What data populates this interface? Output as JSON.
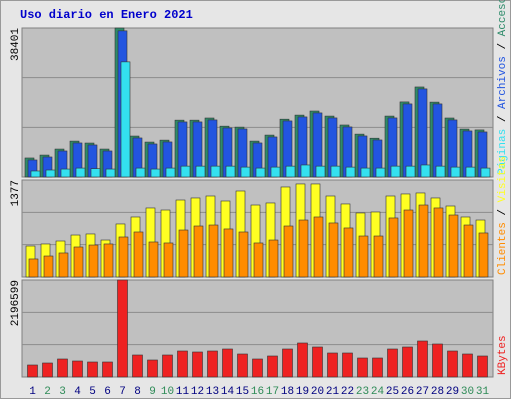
{
  "chart_data": [
    {
      "type": "bar",
      "title": "Uso diario en Enero 2021",
      "legend_separator": " / ",
      "ylim": [
        0,
        38401
      ],
      "yticks": [
        38401
      ],
      "series": [
        {
          "name": "Páginas",
          "color": "#33e0f0",
          "values": [
            1550,
            1800,
            2050,
            2300,
            2150,
            2050,
            29670,
            2300,
            2050,
            2300,
            2800,
            2800,
            2800,
            2800,
            2550,
            2300,
            2550,
            2800,
            3100,
            2800,
            2800,
            2550,
            2300,
            2300,
            2800,
            2800,
            3100,
            2800,
            2550,
            2550,
            2300
          ]
        },
        {
          "name": "Archivos",
          "color": "#2255e0",
          "values": [
            4386,
            5160,
            6708,
            8772,
            8256,
            6708,
            37668,
            10062,
            8514,
            9030,
            14190,
            14190,
            14706,
            12642,
            12384,
            8772,
            10320,
            14448,
            15480,
            16512,
            15222,
            12900,
            10578,
            9546,
            15222,
            18834,
            22704,
            18834,
            14706,
            11868,
            11610
          ]
        },
        {
          "name": "Accesos",
          "color": "#2e8b6a",
          "values": [
            4900,
            5650,
            7200,
            9250,
            8750,
            7200,
            38401,
            10550,
            9000,
            9500,
            14650,
            14650,
            15200,
            13100,
            12850,
            9250,
            10800,
            14900,
            15950,
            17000,
            15700,
            13400,
            11050,
            10000,
            15700,
            19350,
            23200,
            19300,
            15200,
            12350,
            12130
          ]
        }
      ]
    },
    {
      "type": "bar",
      "ylim": [
        0,
        1377
      ],
      "yticks": [
        1377
      ],
      "series": [
        {
          "name": "Clientes",
          "color": "#ff8c00",
          "values": [
            256,
            298,
            341,
            426,
            454,
            469,
            568,
            639,
            497,
            483,
            667,
            724,
            738,
            682,
            639,
            483,
            525,
            724,
            809,
            852,
            767,
            696,
            582,
            582,
            838,
            951,
            1022,
            980,
            880,
            738,
            625
          ]
        },
        {
          "name": "Visitas",
          "color": "#ffff22",
          "values": [
            440,
            469,
            511,
            596,
            611,
            525,
            753,
            852,
            980,
            951,
            1093,
            1122,
            1150,
            1079,
            1221,
            1022,
            1051,
            1278,
            1321,
            1321,
            1150,
            1037,
            909,
            923,
            1150,
            1179,
            1193,
            1122,
            1008,
            852,
            809
          ]
        }
      ]
    },
    {
      "type": "bar",
      "ylim": [
        0,
        2196599
      ],
      "yticks": [
        2196599
      ],
      "categories": [
        "1",
        "2",
        "3",
        "4",
        "5",
        "6",
        "7",
        "8",
        "9",
        "10",
        "11",
        "12",
        "13",
        "14",
        "15",
        "16",
        "17",
        "18",
        "19",
        "20",
        "21",
        "22",
        "23",
        "24",
        "25",
        "26",
        "27",
        "28",
        "29",
        "30",
        "31"
      ],
      "category_colors": [
        "#000080",
        "#2e8b57",
        "#2e8b57",
        "#000080",
        "#000080",
        "#000080",
        "#000080",
        "#000080",
        "#2e8b57",
        "#2e8b57",
        "#000080",
        "#000080",
        "#000080",
        "#000080",
        "#000080",
        "#2e8b57",
        "#2e8b57",
        "#000080",
        "#000080",
        "#000080",
        "#000080",
        "#000080",
        "#2e8b57",
        "#2e8b57",
        "#000080",
        "#000080",
        "#000080",
        "#000080",
        "#000080",
        "#2e8b57",
        "#2e8b57"
      ],
      "series": [
        {
          "name": "KBytes",
          "color": "#ee2222",
          "values": [
            271740,
            317030,
            407610,
            362320,
            339675,
            339675,
            2196599,
            498190,
            384965,
            498190,
            588770,
            566125,
            588770,
            634060,
            520835,
            407610,
            475545,
            634060,
            769930,
            679350,
            543480,
            543480,
            430255,
            430255,
            634060,
            679350,
            815220,
            747285,
            588770,
            520835,
            475545
          ]
        }
      ]
    }
  ]
}
